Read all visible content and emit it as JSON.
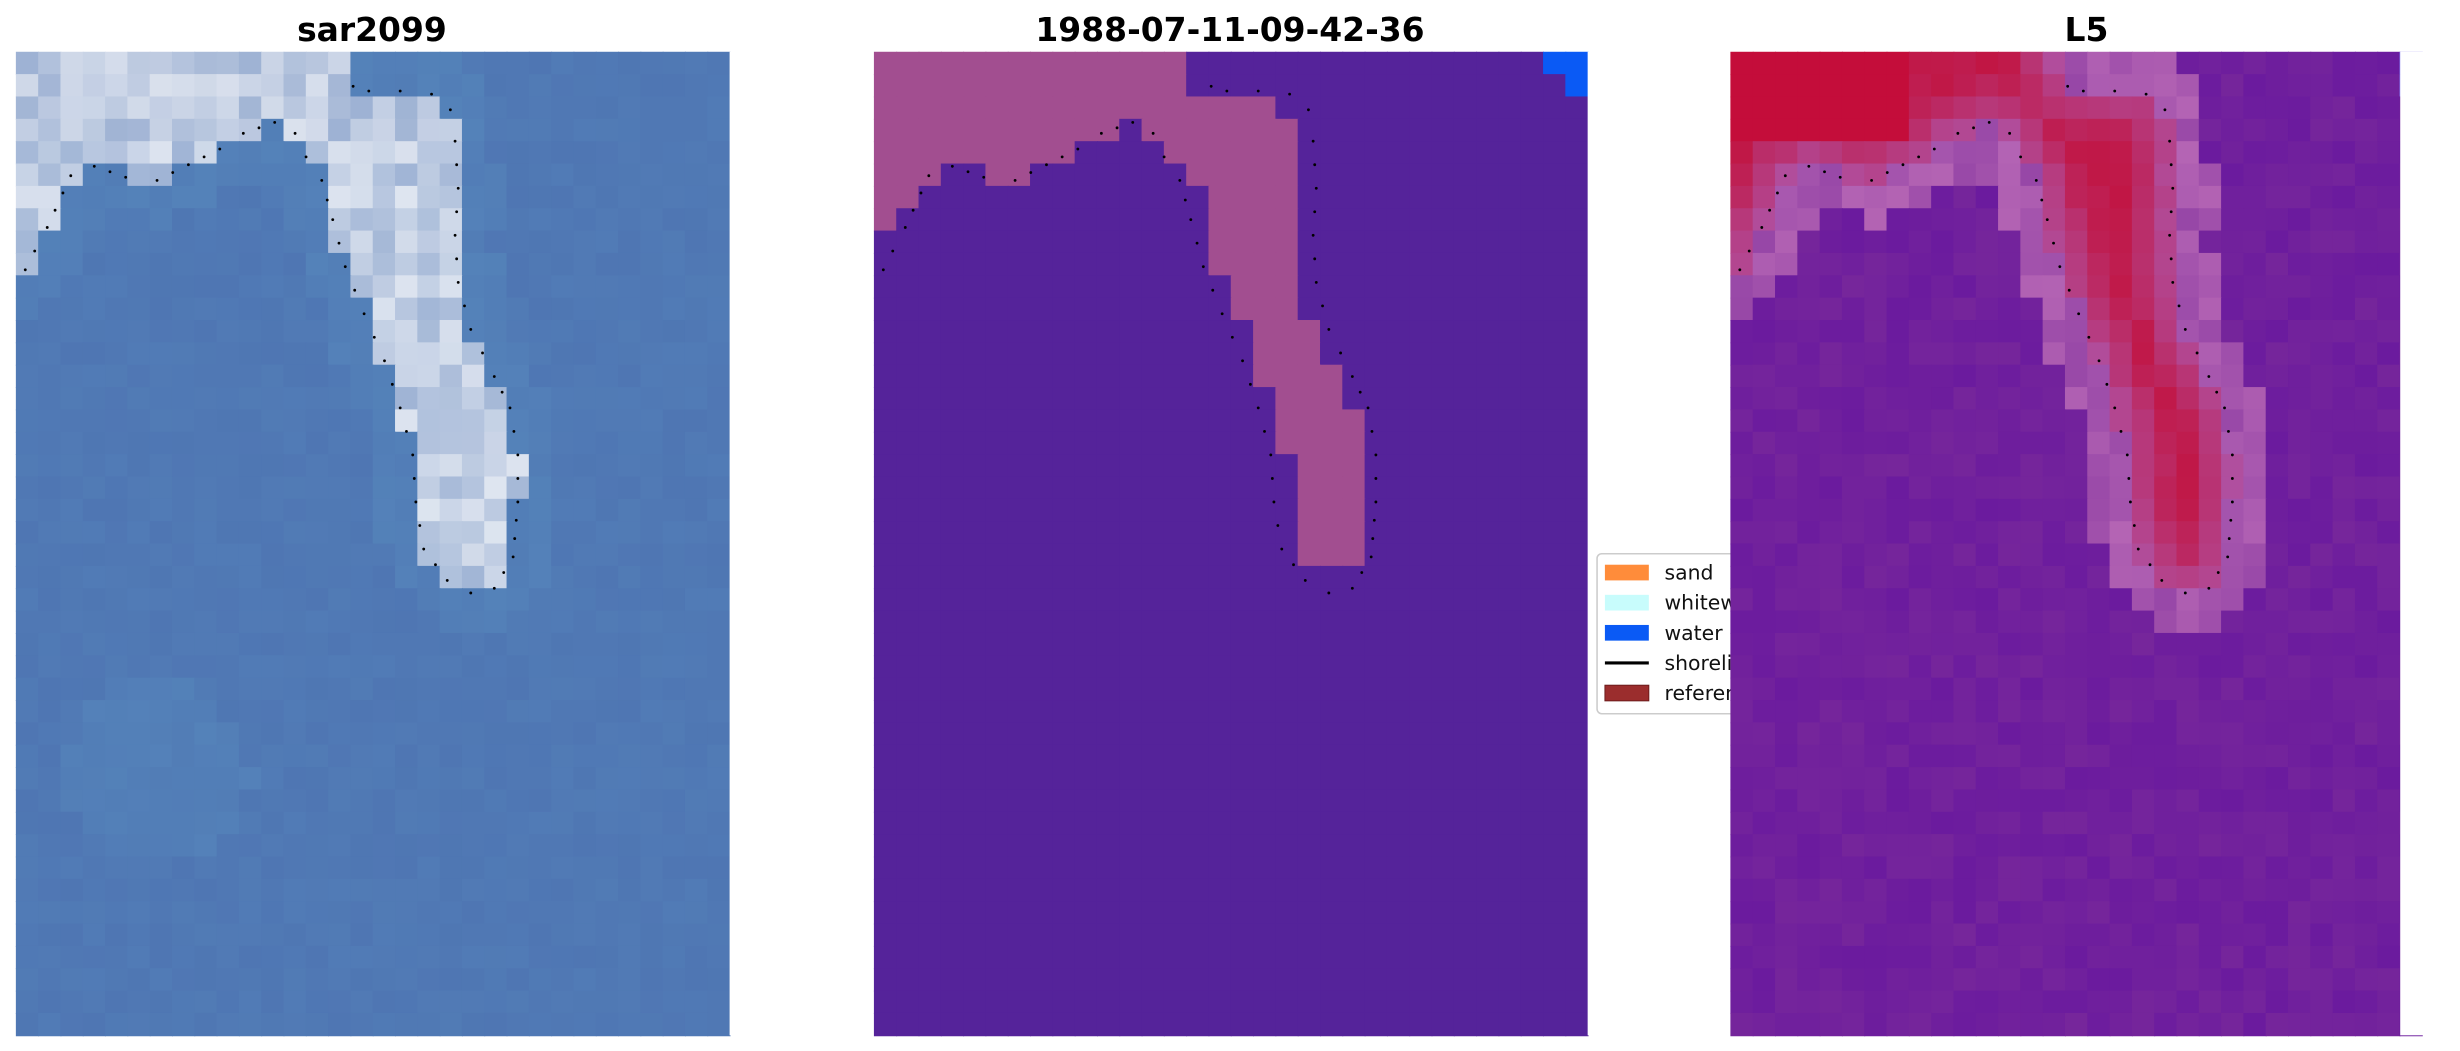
{
  "panels": [
    {
      "title": "sar2099",
      "style": "rgb-composite"
    },
    {
      "title": "1988-07-11-09-42-36",
      "style": "classification"
    },
    {
      "title": "L5",
      "style": "probability"
    }
  ],
  "legend": {
    "items": [
      {
        "label": "sand",
        "kind": "patch",
        "color": "#ff8c3a"
      },
      {
        "label": "whitewater",
        "kind": "patch",
        "color": "#c8fcfc"
      },
      {
        "label": "water",
        "kind": "patch",
        "color": "#0a5af5"
      },
      {
        "label": "shoreline",
        "kind": "line",
        "color": "#000000"
      },
      {
        "label": "reference",
        "kind": "patch",
        "color": "#9b2d2d"
      }
    ]
  },
  "colors": {
    "sar_water": "#4f76b3",
    "sar_land": "#e6ecf4",
    "class_water": "#55239a",
    "class_sand": "#a24e90",
    "class_blue": "#0a5af5",
    "prob_water": "#7a2a9a",
    "prob_land": "#c2123e",
    "shoreline_dots": "#000000"
  },
  "chart_data": {
    "type": "heatmap",
    "subplots": [
      "sar2099",
      "1988-07-11-09-42-36",
      "L5"
    ],
    "legend_placement": "center-right of middle panel",
    "axes": "off",
    "overlay": "dotted shoreline"
  }
}
